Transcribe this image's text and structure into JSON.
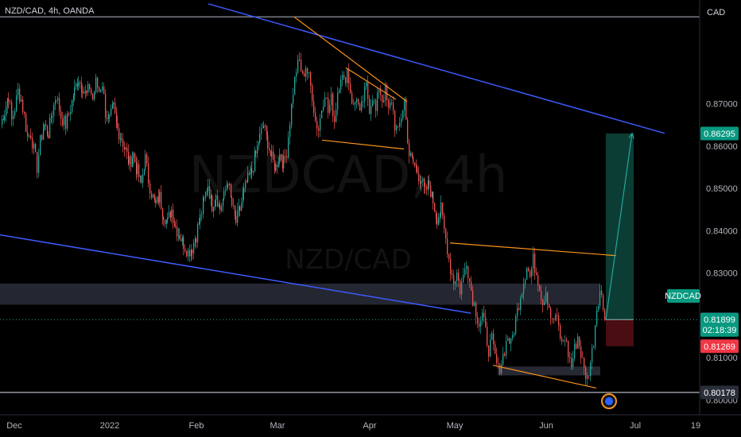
{
  "chart_data": {
    "type": "candlestick",
    "title": "NZD/CAD, 4h, OANDA",
    "watermark": "NZDCAD, 4h",
    "watermark_sub": "NZD/CAD",
    "currency_label": "CAD",
    "symbol": "NZDCAD",
    "ylim": [
      0.7965,
      0.8945
    ],
    "y_ticks": [
      {
        "value": 0.87,
        "label": "0.87000"
      },
      {
        "value": 0.86,
        "label": "0.86000"
      },
      {
        "value": 0.85,
        "label": "0.85000"
      },
      {
        "value": 0.84,
        "label": "0.84000"
      },
      {
        "value": 0.83,
        "label": "0.83000"
      },
      {
        "value": 0.81,
        "label": "0.81000"
      },
      {
        "value": 0.8,
        "label": "0.80000"
      }
    ],
    "x_ticks": [
      "Dec",
      "2022",
      "Feb",
      "Mar",
      "Apr",
      "May",
      "Jun",
      "Jul",
      "19"
    ],
    "price_badges": [
      {
        "value": 0.86295,
        "label": "0.86295",
        "color": "#089981"
      },
      {
        "value": 0.8191,
        "label": "0.81910",
        "color": "#2a2e39"
      },
      {
        "value": 0.81899,
        "label": "0.81899",
        "sub": "02:18:39",
        "color": "#089981"
      },
      {
        "value": 0.81269,
        "label": "0.81269",
        "color": "#f23645"
      },
      {
        "value": 0.80178,
        "label": "0.80178",
        "color": "#2a2e39"
      }
    ],
    "price_path": [
      [
        0,
        0.865
      ],
      [
        5,
        0.868
      ],
      [
        10,
        0.872
      ],
      [
        14,
        0.866
      ],
      [
        18,
        0.869
      ],
      [
        22,
        0.873
      ],
      [
        26,
        0.871
      ],
      [
        30,
        0.867
      ],
      [
        34,
        0.862
      ],
      [
        38,
        0.863
      ],
      [
        42,
        0.859
      ],
      [
        46,
        0.855
      ],
      [
        50,
        0.861
      ],
      [
        55,
        0.865
      ],
      [
        60,
        0.863
      ],
      [
        65,
        0.868
      ],
      [
        70,
        0.872
      ],
      [
        76,
        0.867
      ],
      [
        82,
        0.865
      ],
      [
        88,
        0.869
      ],
      [
        93,
        0.873
      ],
      [
        98,
        0.876
      ],
      [
        103,
        0.874
      ],
      [
        108,
        0.872
      ],
      [
        112,
        0.874
      ],
      [
        116,
        0.871
      ],
      [
        120,
        0.875
      ],
      [
        124,
        0.873
      ],
      [
        128,
        0.875
      ],
      [
        132,
        0.868
      ],
      [
        137,
        0.866
      ],
      [
        142,
        0.869
      ],
      [
        147,
        0.864
      ],
      [
        152,
        0.862
      ],
      [
        157,
        0.859
      ],
      [
        162,
        0.856
      ],
      [
        167,
        0.858
      ],
      [
        172,
        0.854
      ],
      [
        177,
        0.851
      ],
      [
        182,
        0.857
      ],
      [
        186,
        0.852
      ],
      [
        190,
        0.849
      ],
      [
        195,
        0.846
      ],
      [
        200,
        0.848
      ],
      [
        205,
        0.844
      ],
      [
        210,
        0.842
      ],
      [
        215,
        0.845
      ],
      [
        220,
        0.841
      ],
      [
        225,
        0.839
      ],
      [
        230,
        0.837
      ],
      [
        236,
        0.835
      ],
      [
        241,
        0.836
      ],
      [
        246,
        0.839
      ],
      [
        251,
        0.843
      ],
      [
        256,
        0.847
      ],
      [
        261,
        0.851
      ],
      [
        266,
        0.846
      ],
      [
        271,
        0.849
      ],
      [
        276,
        0.845
      ],
      [
        281,
        0.848
      ],
      [
        286,
        0.852
      ],
      [
        291,
        0.846
      ],
      [
        296,
        0.842
      ],
      [
        301,
        0.845
      ],
      [
        306,
        0.849
      ],
      [
        311,
        0.852
      ],
      [
        316,
        0.854
      ],
      [
        321,
        0.858
      ],
      [
        326,
        0.862
      ],
      [
        331,
        0.865
      ],
      [
        336,
        0.861
      ],
      [
        341,
        0.857
      ],
      [
        346,
        0.855
      ],
      [
        351,
        0.858
      ],
      [
        356,
        0.856
      ],
      [
        360,
        0.859
      ],
      [
        364,
        0.866
      ],
      [
        368,
        0.873
      ],
      [
        372,
        0.878
      ],
      [
        376,
        0.88
      ],
      [
        380,
        0.876
      ],
      [
        384,
        0.879
      ],
      [
        388,
        0.876
      ],
      [
        392,
        0.872
      ],
      [
        396,
        0.866
      ],
      [
        400,
        0.864
      ],
      [
        404,
        0.869
      ],
      [
        408,
        0.873
      ],
      [
        412,
        0.868
      ],
      [
        416,
        0.871
      ],
      [
        420,
        0.866
      ],
      [
        424,
        0.873
      ],
      [
        428,
        0.877
      ],
      [
        432,
        0.875
      ],
      [
        436,
        0.878
      ],
      [
        440,
        0.873
      ],
      [
        444,
        0.869
      ],
      [
        448,
        0.872
      ],
      [
        452,
        0.867
      ],
      [
        456,
        0.871
      ],
      [
        460,
        0.874
      ],
      [
        464,
        0.869
      ],
      [
        468,
        0.872
      ],
      [
        472,
        0.868
      ],
      [
        476,
        0.874
      ],
      [
        480,
        0.871
      ],
      [
        484,
        0.873
      ],
      [
        488,
        0.868
      ],
      [
        492,
        0.871
      ],
      [
        496,
        0.865
      ],
      [
        500,
        0.863
      ],
      [
        504,
        0.867
      ],
      [
        508,
        0.871
      ],
      [
        510,
        0.866
      ],
      [
        514,
        0.858
      ],
      [
        519,
        0.856
      ],
      [
        524,
        0.854
      ],
      [
        529,
        0.852
      ],
      [
        534,
        0.849
      ],
      [
        539,
        0.851
      ],
      [
        544,
        0.847
      ],
      [
        549,
        0.843
      ],
      [
        554,
        0.845
      ],
      [
        558,
        0.84
      ],
      [
        562,
        0.836
      ],
      [
        566,
        0.831
      ],
      [
        570,
        0.828
      ],
      [
        574,
        0.83
      ],
      [
        578,
        0.826
      ],
      [
        582,
        0.829
      ],
      [
        586,
        0.833
      ],
      [
        590,
        0.828
      ],
      [
        594,
        0.824
      ],
      [
        598,
        0.821
      ],
      [
        602,
        0.818
      ],
      [
        606,
        0.82
      ],
      [
        610,
        0.816
      ],
      [
        614,
        0.812
      ],
      [
        618,
        0.814
      ],
      [
        622,
        0.81
      ],
      [
        626,
        0.807
      ],
      [
        630,
        0.809
      ],
      [
        634,
        0.812
      ],
      [
        638,
        0.815
      ],
      [
        642,
        0.813
      ],
      [
        646,
        0.817
      ],
      [
        650,
        0.821
      ],
      [
        654,
        0.825
      ],
      [
        658,
        0.828
      ],
      [
        662,
        0.832
      ],
      [
        666,
        0.829
      ],
      [
        670,
        0.833
      ],
      [
        674,
        0.83
      ],
      [
        678,
        0.827
      ],
      [
        682,
        0.823
      ],
      [
        686,
        0.826
      ],
      [
        690,
        0.822
      ],
      [
        694,
        0.818
      ],
      [
        698,
        0.82
      ],
      [
        702,
        0.817
      ],
      [
        706,
        0.813
      ],
      [
        710,
        0.815
      ],
      [
        714,
        0.811
      ],
      [
        718,
        0.808
      ],
      [
        722,
        0.812
      ],
      [
        726,
        0.815
      ],
      [
        730,
        0.811
      ],
      [
        734,
        0.807
      ],
      [
        738,
        0.805
      ],
      [
        742,
        0.809
      ],
      [
        746,
        0.814
      ],
      [
        750,
        0.822
      ],
      [
        754,
        0.826
      ],
      [
        758,
        0.822
      ],
      [
        762,
        0.819
      ]
    ],
    "levels": [
      {
        "name": "top-resistance-line",
        "value": 0.8905,
        "x1": 0,
        "x2": 880,
        "color": "#787b86",
        "width": 1.5
      },
      {
        "name": "bottom-support-line",
        "value": 0.80178,
        "x1": 0,
        "x2": 880,
        "color": "#9598a1",
        "width": 1.5
      },
      {
        "name": "current-price-line",
        "value": 0.81899,
        "x1": 0,
        "x2": 880,
        "color": "#26a69a",
        "width": 1,
        "dash": "1,3"
      }
    ],
    "zones": [
      {
        "name": "supply-demand-zone",
        "x1": 0,
        "x2": 755,
        "y1": 0.8275,
        "y2": 0.8225,
        "color": "#2a2e39",
        "opacity": 0.85
      },
      {
        "name": "low-zone",
        "x1": 626,
        "x2": 755,
        "y1": 0.8079,
        "y2": 0.8058,
        "color": "#2a2e39",
        "opacity": 0.9
      }
    ],
    "trendlines": [
      {
        "name": "upper-channel-line",
        "color": "#3d5afe",
        "width": 1.5,
        "points": [
          [
            262,
            0.8936
          ],
          [
            836,
            0.863
          ]
        ]
      },
      {
        "name": "lower-channel-line",
        "color": "#3d5afe",
        "width": 1.5,
        "points": [
          [
            0,
            0.839
          ],
          [
            592,
            0.8205
          ]
        ]
      },
      {
        "name": "wedge-upper-line",
        "color": "#f7931a",
        "width": 1.2,
        "points": [
          [
            370,
            0.8905
          ],
          [
            512,
            0.8705
          ]
        ]
      },
      {
        "name": "wedge-lower-line",
        "color": "#f7931a",
        "width": 1.2,
        "points": [
          [
            405,
            0.8614
          ],
          [
            508,
            0.8593
          ]
        ]
      },
      {
        "name": "wedge-inner-line",
        "color": "#f7931a",
        "width": 1.2,
        "points": [
          [
            435,
            0.8785
          ],
          [
            498,
            0.871
          ]
        ]
      },
      {
        "name": "range-top-line",
        "color": "#f7931a",
        "width": 1.2,
        "points": [
          [
            566,
            0.8371
          ],
          [
            775,
            0.8341
          ]
        ]
      },
      {
        "name": "range-bottom-line",
        "color": "#f7931a",
        "width": 1.2,
        "points": [
          [
            620,
            0.8082
          ],
          [
            750,
            0.8028
          ]
        ]
      }
    ],
    "position": {
      "x1": 762,
      "x2": 797,
      "entry": 0.81899,
      "target": 0.86295,
      "stop": 0.81269,
      "profit_color": "#0b3d34",
      "loss_color": "#4a0d12"
    },
    "projection_arrow": {
      "color": "#26a69a",
      "points": [
        [
          762,
          0.819
        ],
        [
          795,
          0.863
        ]
      ]
    }
  }
}
